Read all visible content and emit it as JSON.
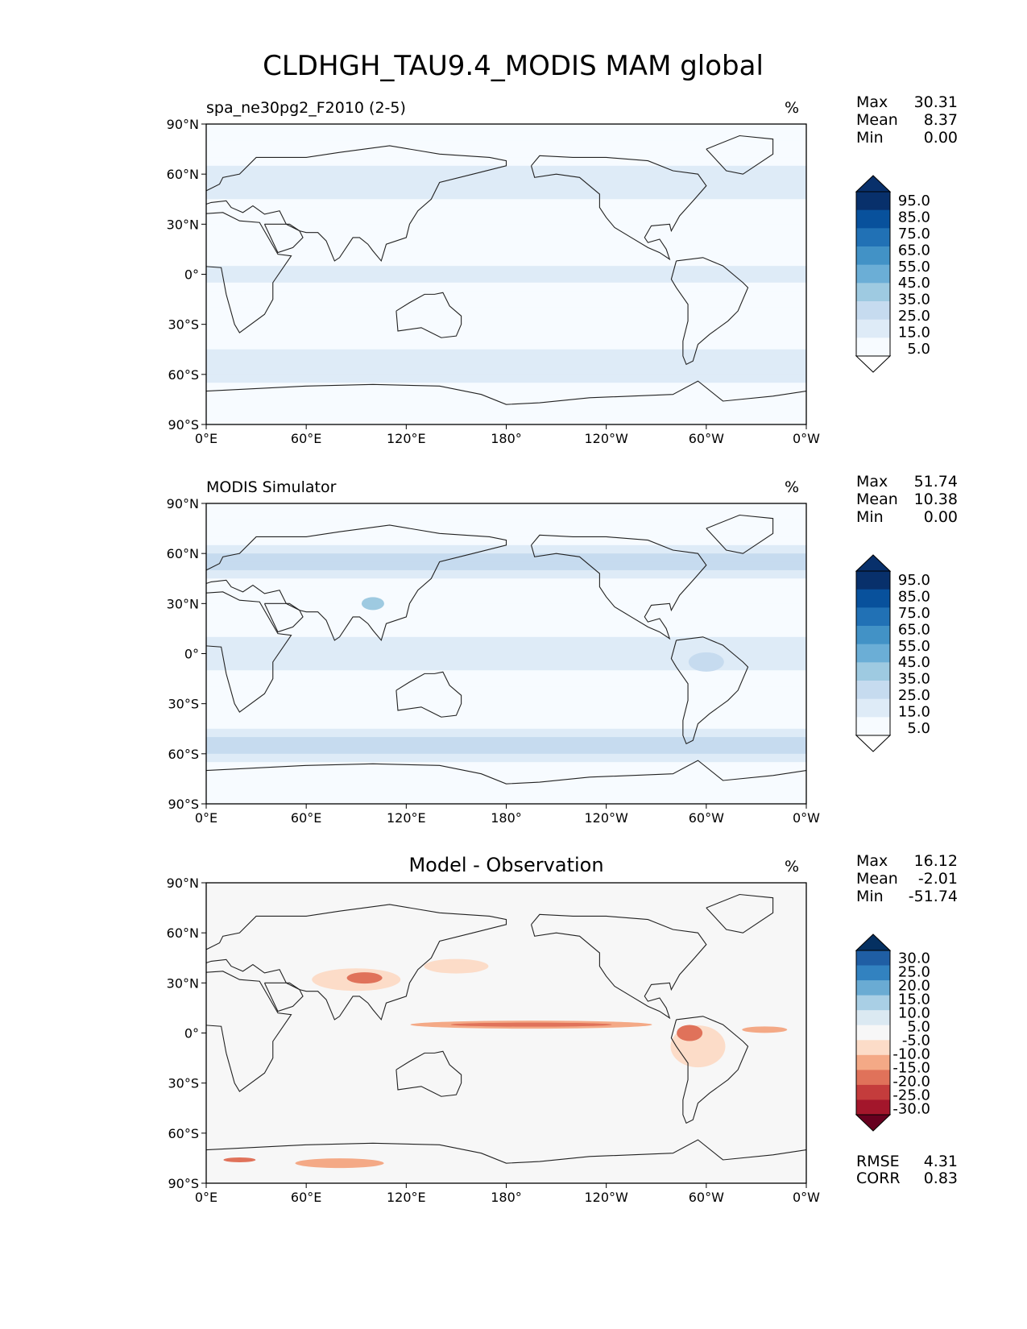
{
  "title": "CLDHGH_TAU9.4_MODIS MAM global",
  "lon_ticks": [
    "0°E",
    "60°E",
    "120°E",
    "180°",
    "120°W",
    "60°W",
    "0°W"
  ],
  "lat_ticks": [
    "90°N",
    "60°N",
    "30°N",
    "0°",
    "30°S",
    "60°S",
    "90°S"
  ],
  "chart_data": [
    {
      "type": "heatmap",
      "panel_title_left": "spa_ne30pg2_F2010 (2-5)",
      "panel_title_center": "",
      "units": "%",
      "stats": [
        {
          "label": "Max",
          "value": "30.31"
        },
        {
          "label": "Mean",
          "value": "8.37"
        },
        {
          "label": "Min",
          "value": "0.00"
        }
      ],
      "colorbar": {
        "labels": [
          "95.0",
          "85.0",
          "75.0",
          "65.0",
          "55.0",
          "45.0",
          "35.0",
          "25.0",
          "15.0",
          "5.0"
        ],
        "colors": [
          "#08306b",
          "#08519c",
          "#2171b5",
          "#4292c6",
          "#6baed6",
          "#9ecae1",
          "#c6dbef",
          "#deebf7",
          "#f7fbff"
        ],
        "extend_top": "#08306b",
        "extend_bottom": "#ffffff"
      },
      "xlim": [
        0,
        360
      ],
      "ylim": [
        -90,
        90
      ],
      "footer_stats": []
    },
    {
      "type": "heatmap",
      "panel_title_left": "MODIS Simulator",
      "panel_title_center": "",
      "units": "%",
      "stats": [
        {
          "label": "Max",
          "value": "51.74"
        },
        {
          "label": "Mean",
          "value": "10.38"
        },
        {
          "label": "Min",
          "value": "0.00"
        }
      ],
      "colorbar": {
        "labels": [
          "95.0",
          "85.0",
          "75.0",
          "65.0",
          "55.0",
          "45.0",
          "35.0",
          "25.0",
          "15.0",
          "5.0"
        ],
        "colors": [
          "#08306b",
          "#08519c",
          "#2171b5",
          "#4292c6",
          "#6baed6",
          "#9ecae1",
          "#c6dbef",
          "#deebf7",
          "#f7fbff"
        ],
        "extend_top": "#08306b",
        "extend_bottom": "#ffffff"
      },
      "xlim": [
        0,
        360
      ],
      "ylim": [
        -90,
        90
      ],
      "footer_stats": []
    },
    {
      "type": "heatmap",
      "panel_title_left": "",
      "panel_title_center": "Model - Observation",
      "units": "%",
      "stats": [
        {
          "label": "Max",
          "value": "16.12"
        },
        {
          "label": "Mean",
          "value": "-2.01"
        },
        {
          "label": "Min",
          "value": "-51.74"
        }
      ],
      "colorbar": {
        "labels": [
          "30.0",
          "25.0",
          "20.0",
          "15.0",
          "10.0",
          "5.0",
          "-5.0",
          "-10.0",
          "-15.0",
          "-20.0",
          "-25.0",
          "-30.0"
        ],
        "colors": [
          "#1f5ea4",
          "#3282c0",
          "#6aabd3",
          "#a9cfe5",
          "#dbe9f2",
          "#f7f7f7",
          "#fcdcc8",
          "#f4a986",
          "#e0725a",
          "#c43c3c",
          "#a3162b"
        ],
        "extend_top": "#053061",
        "extend_bottom": "#67001f"
      },
      "xlim": [
        0,
        360
      ],
      "ylim": [
        -90,
        90
      ],
      "footer_stats": [
        {
          "label": "RMSE",
          "value": "4.31"
        },
        {
          "label": "CORR",
          "value": "0.83"
        }
      ]
    }
  ]
}
